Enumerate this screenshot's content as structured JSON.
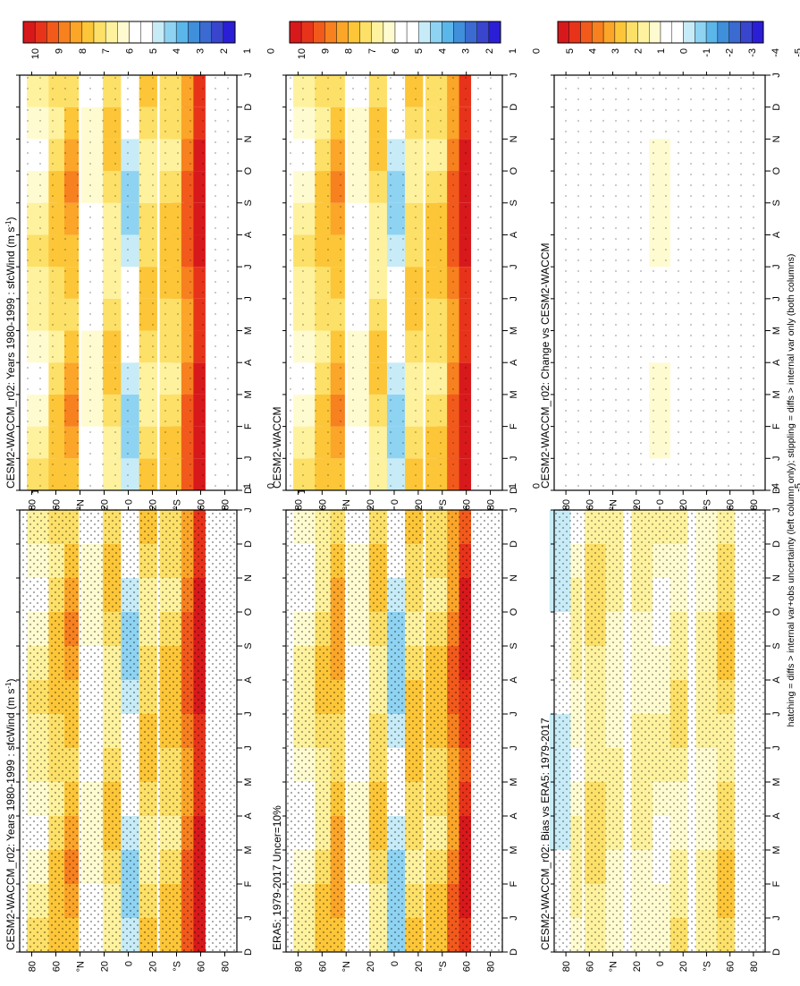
{
  "footnote": "hatching = diffs > internal var+obs uncertainty (left column only); stippling = diffs > internal var only (both columns)",
  "months": [
    "D",
    "J",
    "F",
    "M",
    "A",
    "M",
    "J",
    "J",
    "A",
    "S",
    "O",
    "N",
    "D",
    "J"
  ],
  "lat_ticks": [
    "80",
    "60",
    "°N",
    "20",
    "0",
    "20",
    "°S",
    "60",
    "80"
  ],
  "colorbars": {
    "abs": [
      "10",
      "9",
      "8",
      "7",
      "6",
      "5",
      "4",
      "3",
      "2",
      "1",
      "0"
    ],
    "diff": [
      "5",
      "4",
      "3",
      "2",
      "1",
      "0",
      "-1",
      "-2",
      "-3",
      "-4",
      "-5"
    ]
  },
  "palette": {
    "abs": [
      "#d7191c",
      "#e8331b",
      "#f25a1c",
      "#f7801f",
      "#fba529",
      "#fcc638",
      "#fde068",
      "#fef29e",
      "#fffbd0",
      "#ffffff",
      "#ffffff",
      "#c7ecf8",
      "#8fd3f2",
      "#5bb6ea",
      "#3f8fdb",
      "#3b6ad0",
      "#3a45cd",
      "#2a1fd6"
    ],
    "diff": [
      "#d7191c",
      "#e8331b",
      "#f25a1c",
      "#f7801f",
      "#fba529",
      "#fcc638",
      "#fde068",
      "#fef29e",
      "#fffbd0",
      "#ffffff",
      "#ffffff",
      "#c7ecf8",
      "#8fd3f2",
      "#5bb6ea",
      "#3f8fdb",
      "#3b6ad0",
      "#3a45cd",
      "#2a1fd6"
    ]
  },
  "panels": [
    {
      "id": "model-left",
      "title": "CESM2-WACCM_r02: Years 1980-1999 : sfcWind (m s",
      "title_sup": "-1",
      "title_end": ")",
      "kind": "abs"
    },
    {
      "id": "era5",
      "title": "ERA5: 1979-2017 Uncer=10%",
      "title_sup": "",
      "title_end": "",
      "kind": "abs"
    },
    {
      "id": "bias",
      "title": "CESM2-WACCM_r02: Bias vs ERA5: 1979-2017",
      "title_sup": "",
      "title_end": "",
      "kind": "diff"
    },
    {
      "id": "model-right",
      "title": "CESM2-WACCM_r02: Years 1980-1999 : sfcWind (m s",
      "title_sup": "-1",
      "title_end": ")",
      "kind": "abs"
    },
    {
      "id": "cesm2-waccm",
      "title": "CESM2-WACCM",
      "title_sup": "",
      "title_end": "",
      "kind": "abs"
    },
    {
      "id": "change",
      "title": "CESM2-WACCM_r02: Change vs CESM2-WACCM",
      "title_sup": "",
      "title_end": "",
      "kind": "diff"
    }
  ],
  "chart_data": [
    {
      "type": "heatmap",
      "title": "CESM2-WACCM_r02: Years 1980-1999 : sfcWind (m s-1)",
      "x": [
        "D",
        "J",
        "F",
        "M",
        "A",
        "M",
        "J",
        "J",
        "A",
        "S",
        "O",
        "N",
        "D",
        "J"
      ],
      "y": [
        "80N",
        "60N",
        "40N",
        "20N",
        "0",
        "20S",
        "40S",
        "60S",
        "80S"
      ],
      "zlim": [
        0,
        10
      ],
      "bands": [
        {
          "lat": -55,
          "value": 9.6
        },
        {
          "lat": -45,
          "value": 8.2
        },
        {
          "lat": -35,
          "value": 6.6
        },
        {
          "lat": -15,
          "value": 6.4
        },
        {
          "lat": 0,
          "value": 3.8
        },
        {
          "lat": 15,
          "value": 6.2
        },
        {
          "lat": 30,
          "value": 4.8
        },
        {
          "lat": 50,
          "value": 7.2
        },
        {
          "lat": 62,
          "value": 6.6
        },
        {
          "lat": 75,
          "value": 5.6
        }
      ]
    },
    {
      "type": "heatmap",
      "title": "ERA5: 1979-2017 Uncer=10%",
      "x": [
        "D",
        "J",
        "F",
        "M",
        "A",
        "M",
        "J",
        "J",
        "A",
        "S",
        "O",
        "N",
        "D",
        "J"
      ],
      "y": [
        "80N",
        "60N",
        "40N",
        "20N",
        "0",
        "20S",
        "40S",
        "60S",
        "80S"
      ],
      "zlim": [
        0,
        10
      ],
      "bands": [
        {
          "lat": -55,
          "value": 9.4
        },
        {
          "lat": -45,
          "value": 8.0
        },
        {
          "lat": -35,
          "value": 6.6
        },
        {
          "lat": -15,
          "value": 6.6
        },
        {
          "lat": 0,
          "value": 3.6
        },
        {
          "lat": 15,
          "value": 6.4
        },
        {
          "lat": 30,
          "value": 4.8
        },
        {
          "lat": 50,
          "value": 7.0
        },
        {
          "lat": 62,
          "value": 6.2
        },
        {
          "lat": 75,
          "value": 5.4
        }
      ]
    },
    {
      "type": "heatmap",
      "title": "CESM2-WACCM_r02: Bias vs ERA5: 1979-2017",
      "x": [
        "D",
        "J",
        "F",
        "M",
        "A",
        "M",
        "J",
        "J",
        "A",
        "S",
        "O",
        "N",
        "D",
        "J"
      ],
      "y": [
        "80N",
        "60N",
        "40N",
        "20N",
        "0",
        "20S",
        "40S",
        "60S",
        "80S"
      ],
      "zlim": [
        -5,
        5
      ],
      "bands": [
        {
          "lat": -55,
          "value": 1.4
        },
        {
          "lat": -40,
          "value": 0.6
        },
        {
          "lat": -15,
          "value": 0.8
        },
        {
          "lat": 0,
          "value": 0.3
        },
        {
          "lat": 15,
          "value": 0.7
        },
        {
          "lat": 40,
          "value": 0.5
        },
        {
          "lat": 55,
          "value": 1.0
        },
        {
          "lat": 75,
          "value": 0.4
        },
        {
          "lat": 85,
          "value": -1.2
        }
      ]
    },
    {
      "type": "heatmap",
      "title": "CESM2-WACCM_r02: Years 1980-1999 : sfcWind (m s-1)",
      "x": [
        "D",
        "J",
        "F",
        "M",
        "A",
        "M",
        "J",
        "J",
        "A",
        "S",
        "O",
        "N",
        "D",
        "J"
      ],
      "y": [
        "80N",
        "60N",
        "40N",
        "20N",
        "0",
        "20S",
        "40S",
        "60S",
        "80S"
      ],
      "zlim": [
        0,
        10
      ],
      "bands": [
        {
          "lat": -55,
          "value": 9.6
        },
        {
          "lat": -45,
          "value": 8.2
        },
        {
          "lat": -35,
          "value": 6.6
        },
        {
          "lat": -15,
          "value": 6.4
        },
        {
          "lat": 0,
          "value": 3.8
        },
        {
          "lat": 15,
          "value": 6.2
        },
        {
          "lat": 30,
          "value": 4.8
        },
        {
          "lat": 50,
          "value": 7.2
        },
        {
          "lat": 62,
          "value": 6.6
        },
        {
          "lat": 75,
          "value": 5.6
        }
      ]
    },
    {
      "type": "heatmap",
      "title": "CESM2-WACCM",
      "x": [
        "D",
        "J",
        "F",
        "M",
        "A",
        "M",
        "J",
        "J",
        "A",
        "S",
        "O",
        "N",
        "D",
        "J"
      ],
      "y": [
        "80N",
        "60N",
        "40N",
        "20N",
        "0",
        "20S",
        "40S",
        "60S",
        "80S"
      ],
      "zlim": [
        0,
        10
      ],
      "bands": [
        {
          "lat": -55,
          "value": 9.6
        },
        {
          "lat": -45,
          "value": 8.2
        },
        {
          "lat": -35,
          "value": 6.6
        },
        {
          "lat": -15,
          "value": 6.4
        },
        {
          "lat": 0,
          "value": 3.8
        },
        {
          "lat": 15,
          "value": 6.2
        },
        {
          "lat": 30,
          "value": 4.8
        },
        {
          "lat": 50,
          "value": 7.2
        },
        {
          "lat": 62,
          "value": 6.6
        },
        {
          "lat": 75,
          "value": 5.6
        }
      ]
    },
    {
      "type": "heatmap",
      "title": "CESM2-WACCM_r02: Change vs CESM2-WACCM",
      "x": [
        "D",
        "J",
        "F",
        "M",
        "A",
        "M",
        "J",
        "J",
        "A",
        "S",
        "O",
        "N",
        "D",
        "J"
      ],
      "y": [
        "80N",
        "60N",
        "40N",
        "20N",
        "0",
        "20S",
        "40S",
        "60S",
        "80S"
      ],
      "zlim": [
        -5,
        5
      ],
      "bands": [
        {
          "lat": 0,
          "value": 0.0
        }
      ]
    }
  ]
}
